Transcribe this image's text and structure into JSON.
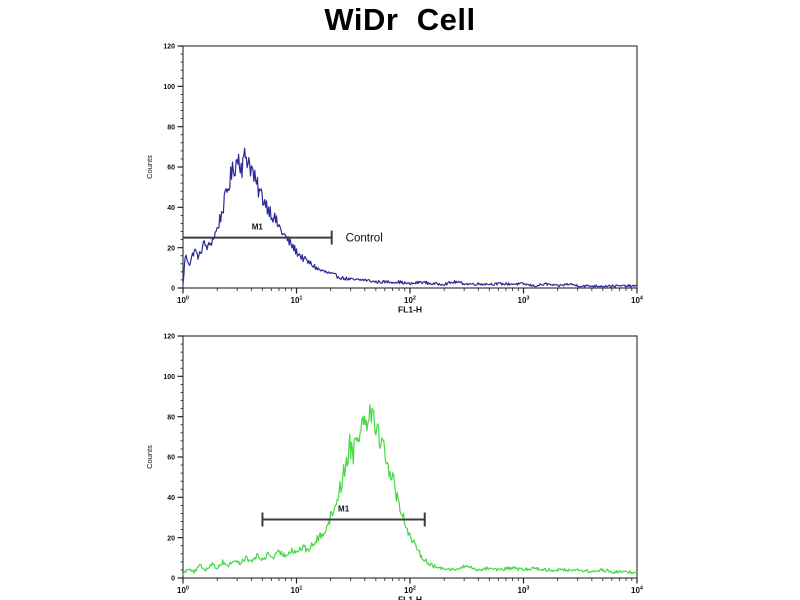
{
  "header": {
    "title": "WiDr  Cell"
  },
  "chart_data": [
    {
      "id": "control-histogram",
      "type": "line",
      "curve_color": "#2b2b96",
      "xlabel": "FL1-H",
      "ylabel": "Counts",
      "x_scale": "log10",
      "xlim_log10": [
        0,
        4
      ],
      "x_tick_labels": [
        "10^0",
        "10^1",
        "10^2",
        "10^3",
        "10^4"
      ],
      "ylim": [
        0,
        120
      ],
      "y_ticks": [
        0,
        20,
        40,
        60,
        80,
        100,
        120
      ],
      "y_minor_step": 4,
      "grid": false,
      "marker": {
        "label": "M1",
        "from_log10": 0.0,
        "to_log10": 1.31,
        "counts": 25,
        "left_tick": false,
        "right_tick": true,
        "annotation": "Control"
      },
      "points_log10x_counts": [
        [
          0.0,
          2
        ],
        [
          0.02,
          16
        ],
        [
          0.06,
          12
        ],
        [
          0.1,
          19
        ],
        [
          0.14,
          15
        ],
        [
          0.18,
          22
        ],
        [
          0.22,
          20
        ],
        [
          0.26,
          24
        ],
        [
          0.3,
          29
        ],
        [
          0.34,
          37
        ],
        [
          0.38,
          46
        ],
        [
          0.42,
          55
        ],
        [
          0.46,
          61
        ],
        [
          0.49,
          65
        ],
        [
          0.52,
          60
        ],
        [
          0.55,
          66
        ],
        [
          0.58,
          63
        ],
        [
          0.61,
          58
        ],
        [
          0.64,
          52
        ],
        [
          0.68,
          47
        ],
        [
          0.72,
          43
        ],
        [
          0.76,
          39
        ],
        [
          0.8,
          35
        ],
        [
          0.84,
          31
        ],
        [
          0.88,
          27
        ],
        [
          0.92,
          24
        ],
        [
          0.96,
          21
        ],
        [
          1.0,
          18
        ],
        [
          1.05,
          15
        ],
        [
          1.1,
          13
        ],
        [
          1.15,
          11
        ],
        [
          1.2,
          9
        ],
        [
          1.25,
          8
        ],
        [
          1.3,
          7
        ],
        [
          1.35,
          6
        ],
        [
          1.4,
          5
        ],
        [
          1.5,
          4
        ],
        [
          1.6,
          4
        ],
        [
          1.7,
          3
        ],
        [
          1.8,
          3
        ],
        [
          1.9,
          3
        ],
        [
          2.0,
          2
        ],
        [
          2.1,
          3
        ],
        [
          2.2,
          2
        ],
        [
          2.3,
          2
        ],
        [
          2.4,
          3
        ],
        [
          2.5,
          2
        ],
        [
          2.6,
          2
        ],
        [
          2.7,
          2
        ],
        [
          2.8,
          2
        ],
        [
          2.9,
          2
        ],
        [
          3.0,
          2
        ],
        [
          3.1,
          1
        ],
        [
          3.2,
          2
        ],
        [
          3.3,
          1
        ],
        [
          3.4,
          2
        ],
        [
          3.5,
          1
        ],
        [
          3.6,
          1
        ],
        [
          3.7,
          1
        ],
        [
          3.8,
          1
        ],
        [
          3.9,
          1
        ],
        [
          4.0,
          1
        ]
      ]
    },
    {
      "id": "stained-histogram",
      "type": "line",
      "curve_color": "#45d945",
      "xlabel": "FL1-H",
      "ylabel": "Counts",
      "x_scale": "log10",
      "xlim_log10": [
        0,
        4
      ],
      "x_tick_labels": [
        "10^0",
        "10^1",
        "10^2",
        "10^3",
        "10^4"
      ],
      "ylim": [
        0,
        120
      ],
      "y_ticks": [
        0,
        20,
        40,
        60,
        80,
        100,
        120
      ],
      "y_minor_step": 4,
      "grid": false,
      "marker": {
        "label": "M1",
        "from_log10": 0.7,
        "to_log10": 2.13,
        "counts": 29,
        "left_tick": true,
        "right_tick": true,
        "annotation": ""
      },
      "points_log10x_counts": [
        [
          0.0,
          2
        ],
        [
          0.05,
          5
        ],
        [
          0.1,
          3
        ],
        [
          0.15,
          6
        ],
        [
          0.2,
          4
        ],
        [
          0.25,
          7
        ],
        [
          0.3,
          5
        ],
        [
          0.35,
          8
        ],
        [
          0.4,
          6
        ],
        [
          0.45,
          9
        ],
        [
          0.5,
          7
        ],
        [
          0.55,
          10
        ],
        [
          0.6,
          8
        ],
        [
          0.65,
          11
        ],
        [
          0.7,
          9
        ],
        [
          0.75,
          12
        ],
        [
          0.8,
          10
        ],
        [
          0.85,
          13
        ],
        [
          0.9,
          11
        ],
        [
          0.95,
          14
        ],
        [
          1.0,
          13
        ],
        [
          1.05,
          15
        ],
        [
          1.1,
          14
        ],
        [
          1.15,
          17
        ],
        [
          1.2,
          20
        ],
        [
          1.25,
          24
        ],
        [
          1.3,
          30
        ],
        [
          1.35,
          38
        ],
        [
          1.4,
          48
        ],
        [
          1.44,
          58
        ],
        [
          1.47,
          66
        ],
        [
          1.5,
          62
        ],
        [
          1.53,
          74
        ],
        [
          1.56,
          70
        ],
        [
          1.59,
          82
        ],
        [
          1.62,
          78
        ],
        [
          1.64,
          86
        ],
        [
          1.66,
          80
        ],
        [
          1.68,
          84
        ],
        [
          1.7,
          76
        ],
        [
          1.73,
          70
        ],
        [
          1.76,
          66
        ],
        [
          1.8,
          58
        ],
        [
          1.84,
          50
        ],
        [
          1.88,
          42
        ],
        [
          1.92,
          34
        ],
        [
          1.96,
          27
        ],
        [
          2.0,
          21
        ],
        [
          2.05,
          15
        ],
        [
          2.1,
          11
        ],
        [
          2.15,
          8
        ],
        [
          2.2,
          6
        ],
        [
          2.25,
          5
        ],
        [
          2.3,
          5
        ],
        [
          2.4,
          4
        ],
        [
          2.5,
          6
        ],
        [
          2.6,
          4
        ],
        [
          2.7,
          5
        ],
        [
          2.8,
          4
        ],
        [
          2.9,
          5
        ],
        [
          3.0,
          4
        ],
        [
          3.1,
          5
        ],
        [
          3.2,
          4
        ],
        [
          3.3,
          4
        ],
        [
          3.4,
          4
        ],
        [
          3.5,
          4
        ],
        [
          3.6,
          3
        ],
        [
          3.7,
          4
        ],
        [
          3.8,
          3
        ],
        [
          3.9,
          3
        ],
        [
          4.0,
          3
        ]
      ]
    }
  ]
}
